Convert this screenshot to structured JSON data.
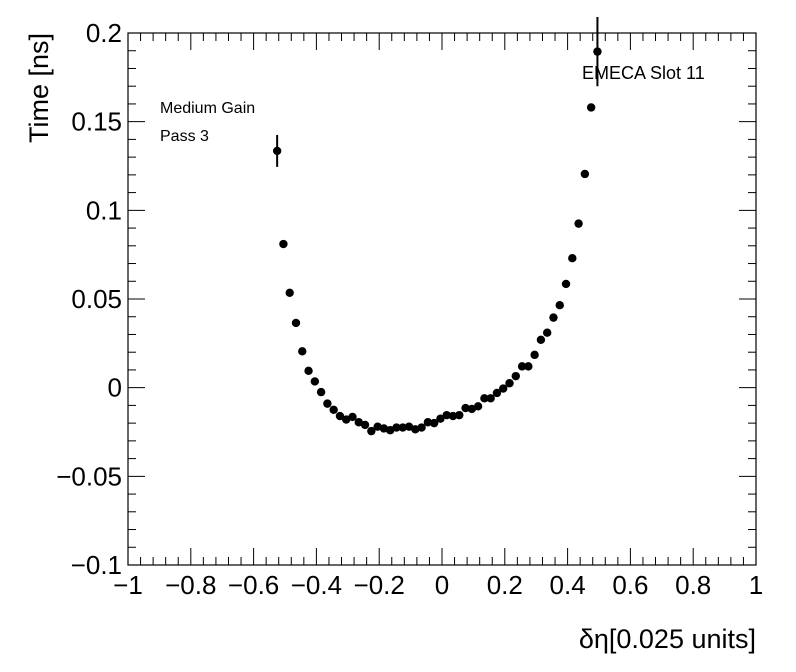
{
  "chart_data": {
    "type": "scatter",
    "xlabel": "δη[0.025 units]",
    "ylabel": "Time [ns]",
    "xlim": [
      -1,
      1
    ],
    "ylim": [
      -0.1,
      0.2
    ],
    "x_ticks": [
      -1,
      -0.8,
      -0.6,
      -0.4,
      -0.2,
      0,
      0.2,
      0.4,
      0.6,
      0.8,
      1
    ],
    "x_tick_labels": [
      "−1",
      "−0.8",
      "−0.6",
      "−0.4",
      "−0.2",
      "0",
      "0.2",
      "0.4",
      "0.6",
      "0.8",
      "1"
    ],
    "y_ticks": [
      -0.1,
      -0.05,
      0,
      0.05,
      0.1,
      0.15,
      0.2
    ],
    "y_tick_labels": [
      "−0.1",
      "−0.05",
      "0",
      "0.05",
      "0.1",
      "0.15",
      "0.2"
    ],
    "grid": false,
    "marker_color": "#000000",
    "annotations": {
      "gain": "Medium Gain",
      "pass": "Pass 3",
      "slot": "EMECA Slot 11"
    },
    "points": [
      {
        "x": -0.525,
        "y": 0.1335,
        "err": 0.009
      },
      {
        "x": -0.505,
        "y": 0.081,
        "err": 0.0
      },
      {
        "x": -0.485,
        "y": 0.0535,
        "err": 0.0
      },
      {
        "x": -0.465,
        "y": 0.0365,
        "err": 0.0
      },
      {
        "x": -0.445,
        "y": 0.0205,
        "err": 0.0
      },
      {
        "x": -0.425,
        "y": 0.0095,
        "err": 0.0
      },
      {
        "x": -0.405,
        "y": 0.0035,
        "err": 0.0
      },
      {
        "x": -0.385,
        "y": -0.0025,
        "err": 0.0
      },
      {
        "x": -0.365,
        "y": -0.009,
        "err": 0.0
      },
      {
        "x": -0.345,
        "y": -0.0125,
        "err": 0.0
      },
      {
        "x": -0.325,
        "y": -0.016,
        "err": 0.0
      },
      {
        "x": -0.305,
        "y": -0.018,
        "err": 0.0
      },
      {
        "x": -0.285,
        "y": -0.0165,
        "err": 0.0
      },
      {
        "x": -0.265,
        "y": -0.0195,
        "err": 0.0
      },
      {
        "x": -0.245,
        "y": -0.021,
        "err": 0.0
      },
      {
        "x": -0.225,
        "y": -0.0245,
        "err": 0.0
      },
      {
        "x": -0.205,
        "y": -0.022,
        "err": 0.0
      },
      {
        "x": -0.185,
        "y": -0.023,
        "err": 0.0
      },
      {
        "x": -0.165,
        "y": -0.024,
        "err": 0.0
      },
      {
        "x": -0.145,
        "y": -0.0225,
        "err": 0.0
      },
      {
        "x": -0.125,
        "y": -0.0225,
        "err": 0.0
      },
      {
        "x": -0.105,
        "y": -0.022,
        "err": 0.0
      },
      {
        "x": -0.085,
        "y": -0.0235,
        "err": 0.0
      },
      {
        "x": -0.065,
        "y": -0.0225,
        "err": 0.0
      },
      {
        "x": -0.045,
        "y": -0.0195,
        "err": 0.0
      },
      {
        "x": -0.025,
        "y": -0.02,
        "err": 0.0
      },
      {
        "x": -0.005,
        "y": -0.0175,
        "err": 0.0
      },
      {
        "x": 0.015,
        "y": -0.0155,
        "err": 0.0
      },
      {
        "x": 0.035,
        "y": -0.016,
        "err": 0.0
      },
      {
        "x": 0.055,
        "y": -0.0155,
        "err": 0.0
      },
      {
        "x": 0.075,
        "y": -0.0115,
        "err": 0.0
      },
      {
        "x": 0.095,
        "y": -0.012,
        "err": 0.0
      },
      {
        "x": 0.115,
        "y": -0.0105,
        "err": 0.0
      },
      {
        "x": 0.135,
        "y": -0.006,
        "err": 0.0
      },
      {
        "x": 0.155,
        "y": -0.006,
        "err": 0.0
      },
      {
        "x": 0.175,
        "y": -0.003,
        "err": 0.0
      },
      {
        "x": 0.195,
        "y": -0.0005,
        "err": 0.0
      },
      {
        "x": 0.215,
        "y": 0.0025,
        "err": 0.0
      },
      {
        "x": 0.235,
        "y": 0.0065,
        "err": 0.0
      },
      {
        "x": 0.255,
        "y": 0.012,
        "err": 0.0
      },
      {
        "x": 0.275,
        "y": 0.012,
        "err": 0.0
      },
      {
        "x": 0.295,
        "y": 0.0185,
        "err": 0.0
      },
      {
        "x": 0.315,
        "y": 0.027,
        "err": 0.0
      },
      {
        "x": 0.335,
        "y": 0.031,
        "err": 0.0
      },
      {
        "x": 0.355,
        "y": 0.0395,
        "err": 0.0
      },
      {
        "x": 0.375,
        "y": 0.0465,
        "err": 0.0
      },
      {
        "x": 0.395,
        "y": 0.0585,
        "err": 0.0
      },
      {
        "x": 0.415,
        "y": 0.073,
        "err": 0.0
      },
      {
        "x": 0.435,
        "y": 0.0925,
        "err": 0.0
      },
      {
        "x": 0.455,
        "y": 0.1205,
        "err": 0.0
      },
      {
        "x": 0.475,
        "y": 0.158,
        "err": 0.0
      },
      {
        "x": 0.495,
        "y": 0.1895,
        "err": 0.0195
      }
    ]
  }
}
